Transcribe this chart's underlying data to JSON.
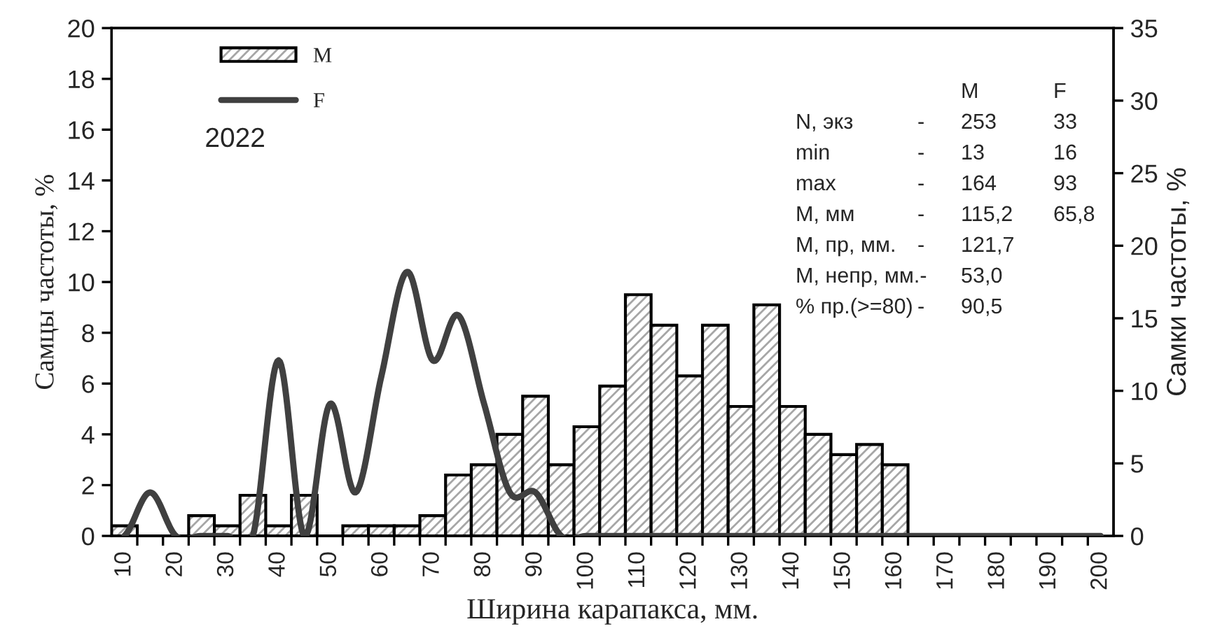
{
  "chart_data": {
    "type": "bar",
    "xlabel": "Ширина карапакса, мм.",
    "ylabel": "Самцы частоты, %",
    "y2label": "Самки частоты, %",
    "x": [
      10,
      15,
      20,
      25,
      30,
      35,
      40,
      45,
      50,
      55,
      60,
      65,
      70,
      75,
      80,
      85,
      90,
      95,
      100,
      105,
      110,
      115,
      120,
      125,
      130,
      135,
      140,
      145,
      150,
      155,
      160
    ],
    "series": [
      {
        "name": "M",
        "color": "#000000",
        "values": [
          0.4,
          0,
          0,
          0.8,
          0.4,
          1.6,
          0.4,
          1.6,
          0,
          0.4,
          0.4,
          0.4,
          0.8,
          2.4,
          2.8,
          4.0,
          5.5,
          2.8,
          4.3,
          5.9,
          9.5,
          8.3,
          6.3,
          8.3,
          5.1,
          9.1,
          5.1,
          4.0,
          3.2,
          3.6,
          2.8
        ]
      },
      {
        "name": "F",
        "type": "line",
        "axis": "y2",
        "color": "#404040",
        "marker": "none",
        "line_style": "solid",
        "x": [
          10,
          15,
          20,
          25,
          30,
          35,
          40,
          45,
          50,
          55,
          60,
          65,
          70,
          75,
          80,
          85,
          90,
          95,
          100,
          105,
          110,
          115,
          120,
          125,
          130,
          135,
          140,
          145,
          150,
          155,
          160,
          165,
          170,
          175,
          180,
          185,
          190,
          195,
          200
        ],
        "values": [
          0,
          3.0,
          0,
          0,
          0,
          0,
          12.1,
          0,
          9.1,
          3.0,
          11,
          18.2,
          12.1,
          15.2,
          9.1,
          3.0,
          3.0,
          0,
          0,
          0,
          0,
          0,
          0,
          0,
          0,
          0,
          0,
          0,
          0,
          0,
          0,
          0,
          0,
          0,
          0,
          0,
          0,
          0,
          0
        ]
      }
    ],
    "xlim": [
      7.5,
      202.5
    ],
    "xticks": [
      10,
      20,
      30,
      40,
      50,
      60,
      70,
      80,
      90,
      100,
      110,
      120,
      130,
      140,
      150,
      160,
      170,
      180,
      190,
      200,
      {
        "value": 12.5,
        "label": null
      },
      {
        "value": 17.5,
        "label": null
      },
      {
        "value": 22.5,
        "label": null
      },
      {
        "value": 27.5,
        "label": null
      },
      {
        "value": 32.5,
        "label": null
      },
      {
        "value": 37.5,
        "label": null
      },
      {
        "value": 42.5,
        "label": null
      },
      {
        "value": 47.5,
        "label": null
      },
      {
        "value": 52.5,
        "label": null
      },
      {
        "value": 57.5,
        "label": null
      },
      {
        "value": 62.5,
        "label": null
      },
      {
        "value": 67.5,
        "label": null
      },
      {
        "value": 72.5,
        "label": null
      },
      {
        "value": 77.5,
        "label": null
      },
      {
        "value": 82.5,
        "label": null
      },
      {
        "value": 87.5,
        "label": null
      },
      {
        "value": 92.5,
        "label": null
      },
      {
        "value": 97.5,
        "label": null
      },
      {
        "value": 102.5,
        "label": null
      },
      {
        "value": 107.5,
        "label": null
      },
      {
        "value": 112.5,
        "label": null
      },
      {
        "value": 117.5,
        "label": null
      },
      {
        "value": 122.5,
        "label": null
      },
      {
        "value": 127.5,
        "label": null
      },
      {
        "value": 132.5,
        "label": null
      },
      {
        "value": 137.5,
        "label": null
      },
      {
        "value": 142.5,
        "label": null
      },
      {
        "value": 147.5,
        "label": null
      },
      {
        "value": 152.5,
        "label": null
      },
      {
        "value": 157.5,
        "label": null
      },
      {
        "value": 162.5,
        "label": null
      },
      {
        "value": 167.5,
        "label": null
      },
      {
        "value": 172.5,
        "label": null
      },
      {
        "value": 177.5,
        "label": null
      },
      {
        "value": 182.5,
        "label": null
      },
      {
        "value": 187.5,
        "label": null
      },
      {
        "value": 192.5,
        "label": null
      },
      {
        "value": 197.5,
        "label": null
      }
    ],
    "ylim": [
      0,
      20
    ],
    "yticks": [
      0,
      2,
      4,
      6,
      8,
      10,
      12,
      14,
      16,
      18,
      20
    ],
    "y2lim": [
      0,
      35
    ],
    "y2ticks": [
      0,
      5,
      10,
      15,
      20,
      25,
      30,
      35
    ],
    "grid": false,
    "legend": "top left",
    "annotations": [
      "2022",
      "\t\tM\tF",
      "N, экз\t-\t253\t33",
      "min\t-\t13\t16",
      "max\t-\t164\t93",
      "M, мм\t-\t115,2\t65,8",
      "M, пр, мм.\t-\t121,7",
      "M, непр, мм.-\t\t53,0",
      "% пр.(>=80)\t-\t90,5"
    ]
  }
}
